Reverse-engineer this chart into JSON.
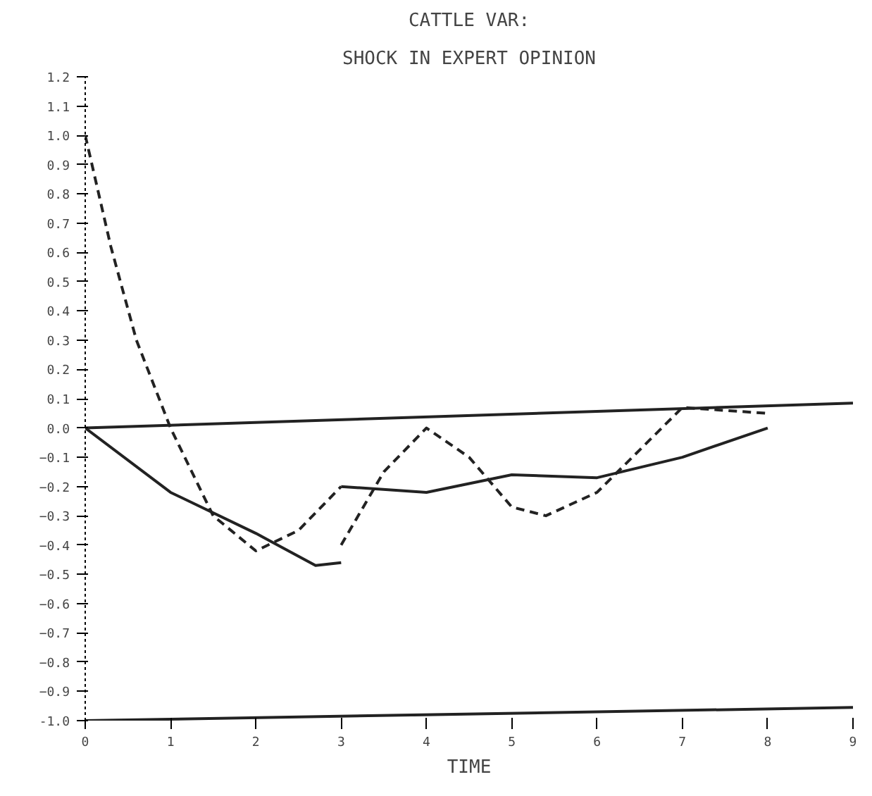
{
  "chart_data": {
    "type": "line",
    "title": "CATTLE VAR:",
    "subtitle": "SHOCK IN EXPERT OPINION",
    "xlabel": "TIME",
    "xlim": [
      0,
      9
    ],
    "xticks": [
      0,
      1,
      2,
      3,
      4,
      5,
      6,
      7,
      8,
      9
    ],
    "ylim": [
      -1.0,
      1.2
    ],
    "yticks": [
      {
        "value": -1.0,
        "label": "-1.0"
      },
      -0.9,
      -0.8,
      -0.7,
      -0.6,
      -0.5,
      -0.4,
      -0.3,
      -0.2,
      -0.1,
      {
        "value": 0,
        "label": "0.0"
      },
      0.1,
      0.2,
      0.3,
      0.4,
      0.5,
      0.6,
      0.7,
      0.8,
      0.9,
      {
        "value": 1.0,
        "label": "1.0"
      },
      1.1,
      1.2
    ],
    "grid": false,
    "marker": "none",
    "series": [
      {
        "color": "#222222",
        "line_style": "dashed",
        "x": [
          0,
          0.3,
          0.6,
          1,
          1.5,
          2,
          2.5,
          3
        ],
        "values": [
          1.0,
          0.62,
          0.3,
          0.0,
          -0.3,
          -0.42,
          -0.35,
          -0.2
        ]
      },
      {
        "color": "#222222",
        "line_style": "solid",
        "x": [
          3,
          4,
          5,
          6,
          7,
          8
        ],
        "values": [
          -0.2,
          -0.22,
          -0.16,
          -0.17,
          -0.1,
          0.0
        ]
      },
      {
        "color": "#222222",
        "line_style": "solid",
        "x": [
          0,
          1,
          2,
          2.7,
          3
        ],
        "values": [
          0.0,
          -0.22,
          -0.36,
          -0.47,
          -0.46
        ]
      },
      {
        "color": "#222222",
        "line_style": "dashed",
        "x": [
          3,
          3.5,
          4,
          4.5,
          5,
          5.4,
          6,
          7,
          8
        ],
        "values": [
          -0.4,
          -0.15,
          0.0,
          -0.1,
          -0.27,
          -0.3,
          -0.22,
          0.07,
          0.05
        ]
      },
      {
        "color": "#222222",
        "line_style": "solid",
        "x": [
          0,
          9
        ],
        "values": [
          0.0,
          0.085
        ]
      },
      {
        "color": "#222222",
        "line_style": "solid",
        "x": [
          0,
          9
        ],
        "values": [
          -1.0,
          -0.955
        ]
      }
    ]
  }
}
